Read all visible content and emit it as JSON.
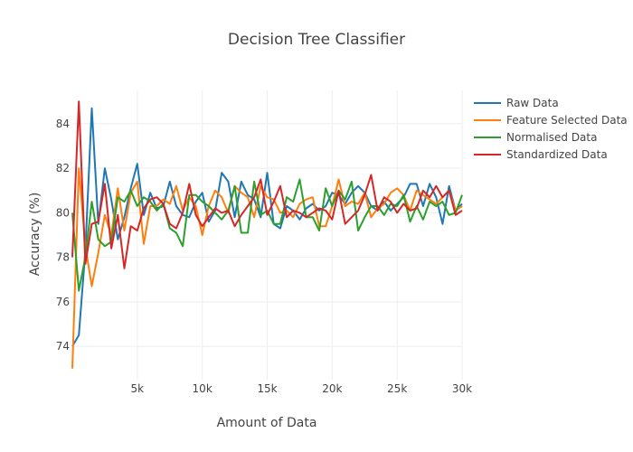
{
  "chart_data": {
    "type": "line",
    "title": "Decision Tree Classifier",
    "xlabel": "Amount of Data",
    "ylabel": "Accuracy (%)",
    "xlim": [
      0,
      30000
    ],
    "ylim": [
      72.5,
      85.5
    ],
    "x_ticks": [
      5000,
      10000,
      15000,
      20000,
      25000,
      30000
    ],
    "x_tick_labels": [
      "5k",
      "10k",
      "15k",
      "20k",
      "25k",
      "30k"
    ],
    "y_ticks": [
      74,
      76,
      78,
      80,
      82,
      84
    ],
    "y_tick_labels": [
      "74",
      "76",
      "78",
      "80",
      "82",
      "84"
    ],
    "grid": true,
    "legend_position": "top-right",
    "x": [
      0,
      500,
      1000,
      1500,
      2000,
      2500,
      3000,
      3500,
      4000,
      4500,
      5000,
      5500,
      6000,
      6500,
      7000,
      7500,
      8000,
      8500,
      9000,
      9500,
      10000,
      10500,
      11000,
      11500,
      12000,
      12500,
      13000,
      13500,
      14000,
      14500,
      15000,
      15500,
      16000,
      16500,
      17000,
      17500,
      18000,
      18500,
      19000,
      19500,
      20000,
      20500,
      21000,
      21500,
      22000,
      22500,
      23000,
      23500,
      24000,
      24500,
      25000,
      25500,
      26000,
      26500,
      27000,
      27500,
      28000,
      28500,
      29000,
      29500,
      30000
    ],
    "series": [
      {
        "name": "Raw Data",
        "color": "#1f77b4",
        "values": [
          74.0,
          74.5,
          78.3,
          84.7,
          79.5,
          82.0,
          80.6,
          78.8,
          79.8,
          81.1,
          82.2,
          79.9,
          80.9,
          80.2,
          80.3,
          81.4,
          80.3,
          79.9,
          79.8,
          80.5,
          80.9,
          79.6,
          80.1,
          81.8,
          81.4,
          79.8,
          81.4,
          80.8,
          80.6,
          79.8,
          81.8,
          79.5,
          79.3,
          80.3,
          80.1,
          79.7,
          80.2,
          80.4,
          80.1,
          80.3,
          80.9,
          80.8,
          80.4,
          80.9,
          81.2,
          80.9,
          80.3,
          80.1,
          80.5,
          80.1,
          80.4,
          80.7,
          81.3,
          81.3,
          80.3,
          81.3,
          80.7,
          79.5,
          81.2,
          80.1,
          80.4
        ]
      },
      {
        "name": "Feature Selected Data",
        "color": "#ff7f0e",
        "values": [
          73.0,
          82.0,
          78.5,
          76.7,
          78.2,
          79.9,
          79.0,
          81.1,
          79.2,
          80.9,
          81.4,
          78.6,
          80.3,
          80.3,
          80.6,
          80.4,
          81.2,
          80.1,
          80.7,
          80.3,
          79.0,
          80.3,
          81.0,
          80.7,
          80.0,
          81.2,
          80.9,
          80.7,
          79.8,
          81.2,
          80.7,
          80.6,
          80.0,
          80.1,
          79.8,
          80.4,
          80.6,
          80.7,
          79.4,
          79.4,
          80.3,
          81.5,
          80.3,
          80.5,
          80.4,
          80.9,
          79.8,
          80.2,
          80.4,
          80.9,
          81.1,
          80.8,
          80.1,
          81.0,
          80.8,
          80.6,
          80.4,
          80.7,
          81.0,
          80.1,
          80.3
        ]
      },
      {
        "name": "Normalised Data",
        "color": "#2ca02c",
        "values": [
          80.0,
          76.5,
          78.0,
          80.5,
          78.8,
          78.5,
          78.7,
          80.7,
          80.5,
          81.0,
          80.3,
          80.7,
          80.5,
          80.1,
          80.4,
          79.3,
          79.1,
          78.5,
          80.8,
          80.8,
          80.5,
          80.3,
          80.0,
          79.7,
          80.1,
          81.2,
          79.1,
          79.1,
          81.4,
          79.9,
          80.1,
          79.5,
          79.5,
          80.7,
          80.5,
          81.5,
          79.8,
          79.8,
          79.2,
          81.1,
          80.3,
          81.0,
          80.6,
          81.4,
          79.2,
          79.8,
          80.3,
          80.3,
          79.9,
          80.4,
          80.3,
          80.8,
          79.6,
          80.3,
          79.7,
          80.5,
          80.3,
          80.5,
          79.9,
          80.0,
          80.8
        ]
      },
      {
        "name": "Standardized Data",
        "color": "#d62728",
        "values": [
          78.0,
          85.0,
          77.7,
          79.5,
          79.6,
          81.3,
          78.4,
          79.9,
          77.5,
          79.4,
          79.2,
          80.2,
          80.6,
          80.7,
          80.4,
          79.5,
          79.3,
          80.0,
          81.3,
          79.9,
          79.4,
          79.8,
          80.2,
          80.0,
          80.1,
          79.4,
          79.9,
          80.3,
          80.7,
          81.5,
          79.9,
          80.5,
          81.2,
          79.8,
          80.1,
          80.0,
          79.8,
          80.0,
          80.2,
          80.1,
          79.7,
          81.0,
          79.5,
          79.8,
          80.1,
          80.8,
          81.7,
          80.1,
          80.7,
          80.5,
          80.0,
          80.4,
          80.1,
          80.2,
          81.0,
          80.7,
          81.2,
          80.7,
          81.0,
          79.9,
          80.1
        ]
      }
    ]
  }
}
